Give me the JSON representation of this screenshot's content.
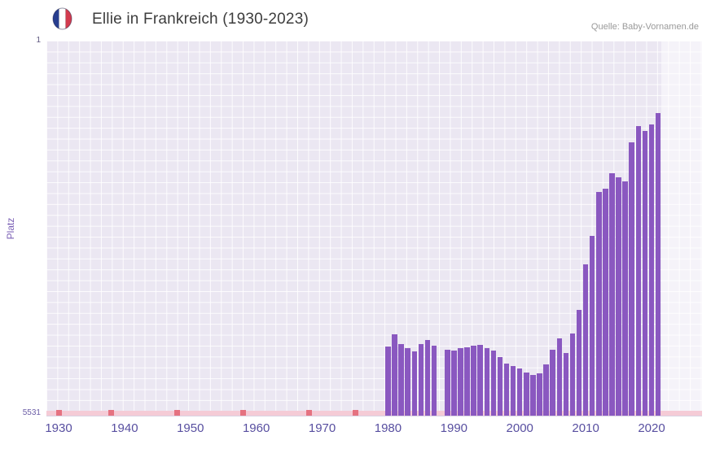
{
  "header": {
    "title": "Ellie in Frankreich (1930-2023)",
    "source": "Quelle: Baby-Vornamen.de",
    "flag_icon": "french-flag-icon"
  },
  "axes": {
    "y_top_label": "1",
    "y_bottom_label": "5531",
    "y_axis_title": "Platz",
    "x_tick_labels": [
      "1930",
      "1940",
      "1950",
      "1960",
      "1970",
      "1980",
      "1990",
      "2000",
      "2010",
      "2020"
    ]
  },
  "colors": {
    "bar": "#8a58c0",
    "plot_background": "#ebe7f2",
    "grid_line": "#ffffff",
    "highlight_band": "#f4f1f8",
    "no_data_strip": "#f5cbd6",
    "no_data_marker": "#e57280",
    "x_tick_label": "#584fa0",
    "y_axis_title_color": "#7a5fb5",
    "title_color": "#3d3d3d",
    "source_color": "#999999",
    "flag_blue": "#273e8f",
    "flag_red": "#d23b4e"
  },
  "chart_data": {
    "type": "bar",
    "title": "Ellie in Frankreich (1930-2023)",
    "xlabel": "",
    "ylabel": "Platz",
    "x_range": [
      1930,
      2023
    ],
    "y_axis": {
      "min": 1,
      "max": 5531,
      "inverted": true,
      "note": "rank 1 at top, bar height = popularity"
    },
    "grid": true,
    "highlight_years": [
      2022,
      2023
    ],
    "no_data_marker_years": [
      1930,
      1938,
      1948,
      1958,
      1968,
      1975
    ],
    "years": [
      1980,
      1981,
      1982,
      1983,
      1984,
      1985,
      1986,
      1987,
      1989,
      1990,
      1991,
      1992,
      1993,
      1994,
      1995,
      1996,
      1997,
      1998,
      1999,
      2000,
      2001,
      2002,
      2003,
      2004,
      2005,
      2006,
      2007,
      2008,
      2009,
      2010,
      2011,
      2012,
      2013,
      2014,
      2015,
      2016,
      2017,
      2018,
      2019,
      2020,
      2021
    ],
    "ranks": [
      4510,
      4330,
      4470,
      4540,
      4580,
      4480,
      4420,
      4500,
      4560,
      4570,
      4530,
      4520,
      4500,
      4490,
      4540,
      4570,
      4670,
      4760,
      4800,
      4840,
      4890,
      4930,
      4910,
      4780,
      4560,
      4390,
      4610,
      4320,
      3970,
      3300,
      2880,
      2230,
      2180,
      1950,
      2010,
      2070,
      1500,
      1260,
      1330,
      1230,
      1070
    ]
  }
}
